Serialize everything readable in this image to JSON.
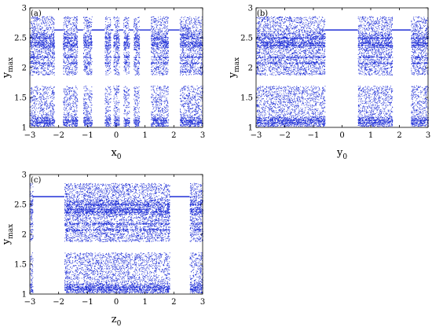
{
  "chart_data": [
    {
      "panel": "(a)",
      "type": "scatter",
      "xlabel": "x",
      "xlabel_sub": "0",
      "ylabel": "y",
      "ylabel_sub": "max",
      "xlim": [
        -3,
        3
      ],
      "ylim": [
        1,
        3
      ],
      "xticks": [
        -3,
        -2,
        -1,
        0,
        1,
        2,
        3
      ],
      "yticks": [
        1,
        1.5,
        2,
        2.5,
        3
      ],
      "color": "#1f2fd6",
      "chaotic_intervals": [
        [
          -3,
          -2.15
        ],
        [
          -1.85,
          -1.35
        ],
        [
          -1.15,
          -0.85
        ],
        [
          -0.4,
          -0.2
        ],
        [
          -0.1,
          0.1
        ],
        [
          0.25,
          0.45
        ],
        [
          0.6,
          0.8
        ],
        [
          1.2,
          1.8
        ],
        [
          2.2,
          3
        ]
      ],
      "periodic_y": 2.63
    },
    {
      "panel": "(b)",
      "type": "scatter",
      "xlabel": "y",
      "xlabel_sub": "0",
      "ylabel": "y",
      "ylabel_sub": "max",
      "xlim": [
        -3,
        3
      ],
      "ylim": [
        1,
        3
      ],
      "xticks": [
        -3,
        -2,
        -1,
        0,
        1,
        2,
        3
      ],
      "yticks": [
        1,
        1.5,
        2,
        2.5,
        3
      ],
      "color": "#1f2fd6",
      "chaotic_intervals": [
        [
          -3,
          -0.6
        ],
        [
          0.55,
          1.75
        ],
        [
          2.4,
          3
        ]
      ],
      "periodic_y": 2.63
    },
    {
      "panel": "(c)",
      "type": "scatter",
      "xlabel": "z",
      "xlabel_sub": "0",
      "ylabel": "y",
      "ylabel_sub": "max",
      "xlim": [
        -3,
        3
      ],
      "ylim": [
        1,
        3
      ],
      "xticks": [
        -3,
        -2,
        -1,
        0,
        1,
        2,
        3
      ],
      "yticks": [
        1,
        1.5,
        2,
        2.5,
        3
      ],
      "color": "#1f2fd6",
      "chaotic_intervals": [
        [
          -3,
          -2.9
        ],
        [
          -1.8,
          1.85
        ],
        [
          2.55,
          3
        ]
      ],
      "periodic_y": 2.63
    }
  ]
}
